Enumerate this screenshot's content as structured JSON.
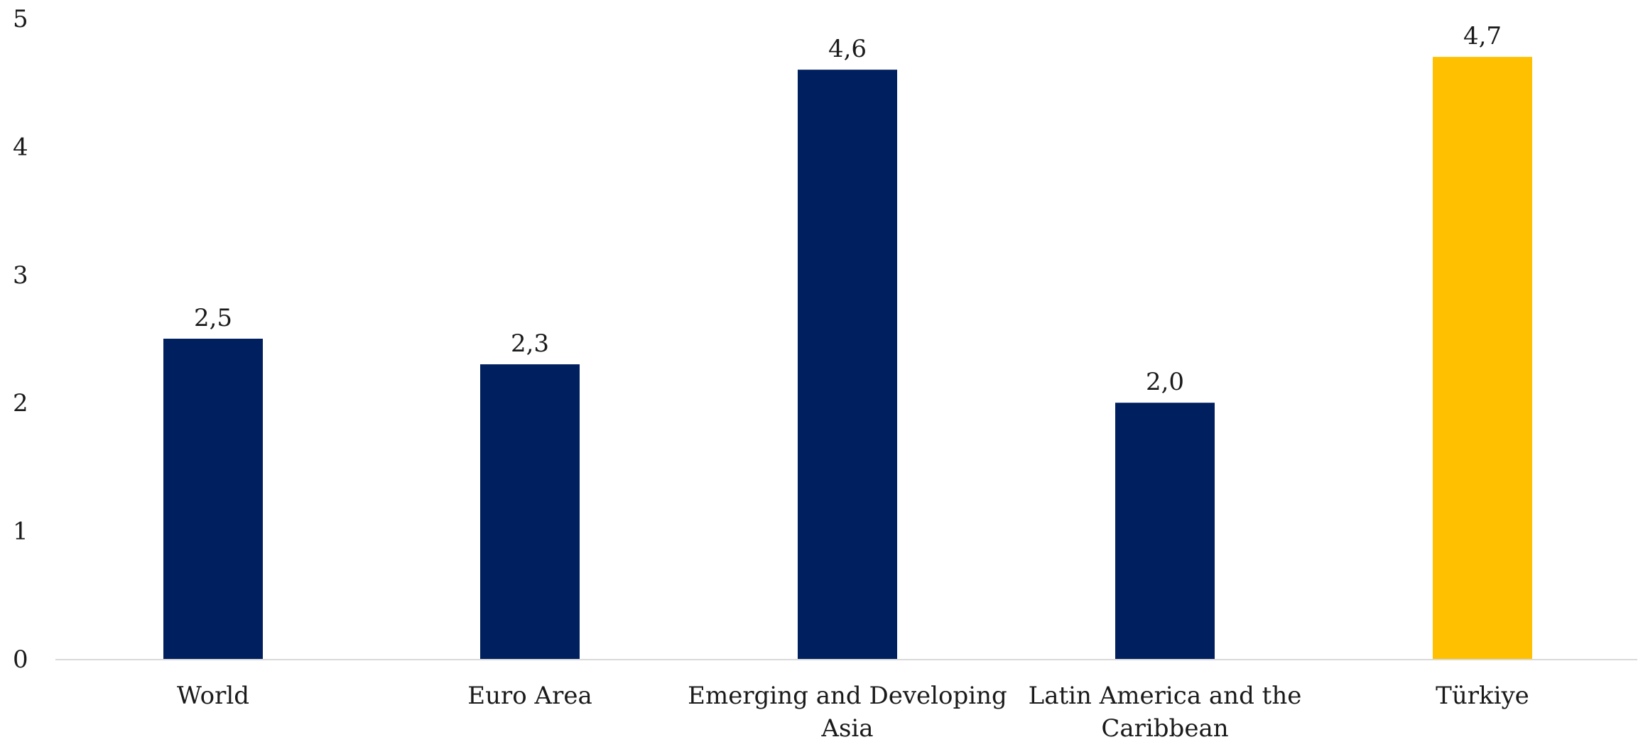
{
  "chart_data": {
    "type": "bar",
    "categories": [
      [
        "World"
      ],
      [
        "Euro Area"
      ],
      [
        "Emerging and Developing",
        "Asia"
      ],
      [
        "Latin America and the",
        "Caribbean"
      ],
      [
        "Türkiye"
      ]
    ],
    "values": [
      2.5,
      2.3,
      4.6,
      2.0,
      4.7
    ],
    "data_labels": [
      "2,5",
      "2,3",
      "4,6",
      "2,0",
      "4,7"
    ],
    "bar_colors": [
      "#001f5f",
      "#001f5f",
      "#001f5f",
      "#001f5f",
      "#ffc000"
    ],
    "ylim": [
      0,
      5
    ],
    "yticks": [
      0,
      1,
      2,
      3,
      4,
      5
    ],
    "ytick_labels": [
      "0",
      "1",
      "2",
      "3",
      "4",
      "5"
    ],
    "grid": false,
    "axis_color": "#d9d9d9",
    "title": "",
    "xlabel": "",
    "ylabel": ""
  }
}
